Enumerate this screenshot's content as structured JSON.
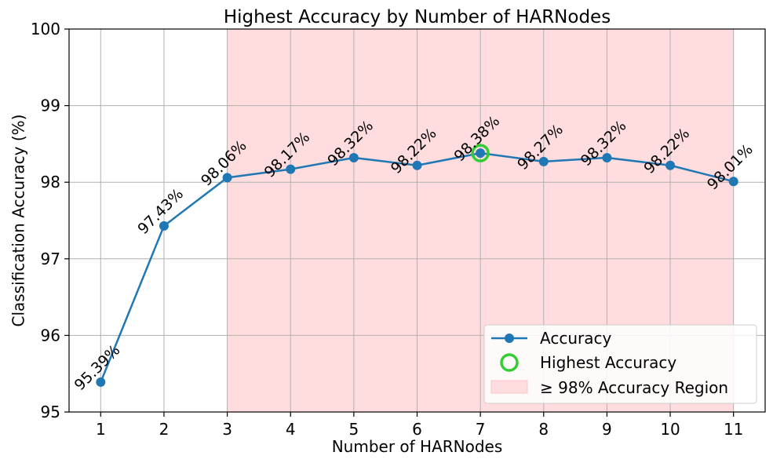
{
  "chart_data": {
    "type": "line",
    "title": "Highest Accuracy by Number of HARNodes",
    "xlabel": "Number of HARNodes",
    "ylabel": "Classification Accuracy (%)",
    "x": [
      1,
      2,
      3,
      4,
      5,
      6,
      7,
      8,
      9,
      10,
      11
    ],
    "x_tick_labels": [
      "1",
      "2",
      "3",
      "4",
      "5",
      "6",
      "7",
      "8",
      "9",
      "10",
      "11"
    ],
    "series": [
      {
        "name": "Accuracy",
        "color": "#1f77b4",
        "values": [
          95.39,
          97.43,
          98.06,
          98.17,
          98.32,
          98.22,
          98.38,
          98.27,
          98.32,
          98.22,
          98.01
        ]
      }
    ],
    "data_labels": [
      "95.39%",
      "97.43%",
      "98.06%",
      "98.17%",
      "98.32%",
      "98.22%",
      "98.38%",
      "98.27%",
      "98.32%",
      "98.22%",
      "98.01%"
    ],
    "highlight": {
      "name": "Highest Accuracy",
      "x": 7,
      "y": 98.38,
      "color": "#33cc33"
    },
    "region": {
      "name": "≥ 98% Accuracy Region",
      "x_start": 3,
      "x_end": 11,
      "color": "#ffdddf"
    },
    "xlim": [
      0.5,
      11.5
    ],
    "ylim": [
      95,
      100
    ],
    "y_ticks": [
      95,
      96,
      97,
      98,
      99,
      100
    ],
    "grid": true,
    "legend_position": "lower-right"
  }
}
